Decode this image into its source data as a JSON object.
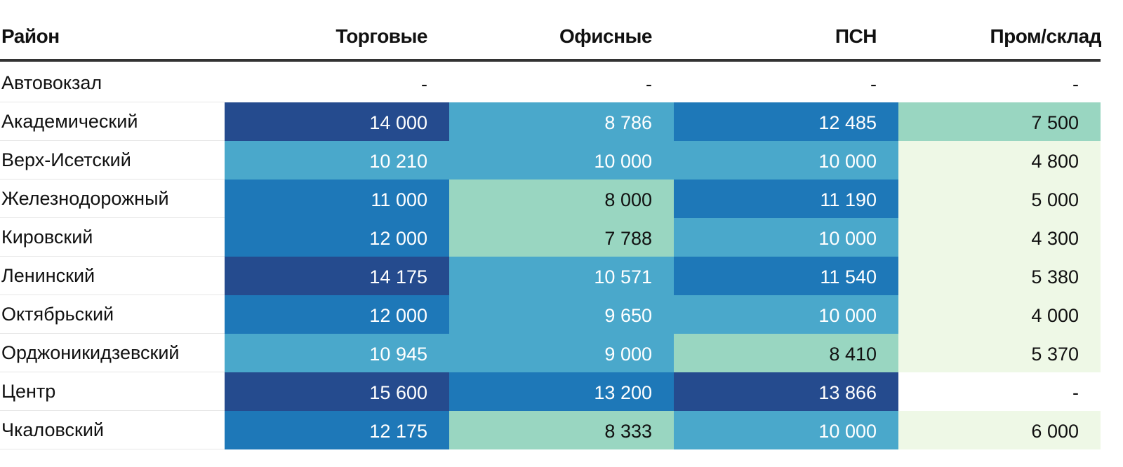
{
  "chart_data": {
    "type": "heatmap",
    "title": "",
    "columns": [
      "Район",
      "Торговые",
      "Офисные",
      "ПСН",
      "Пром/склад"
    ],
    "rows": [
      {
        "district": "Автовокзал",
        "values": [
          "-",
          "-",
          "-",
          "-"
        ],
        "levels": [
          0,
          0,
          0,
          0
        ]
      },
      {
        "district": "Академический",
        "values": [
          "14 000",
          "8 786",
          "12 485",
          "7 500"
        ],
        "levels": [
          4,
          2,
          3,
          1
        ]
      },
      {
        "district": "Верх-Исетский",
        "values": [
          "10 210",
          "10 000",
          "10 000",
          "4 800"
        ],
        "levels": [
          2,
          2,
          2,
          5
        ]
      },
      {
        "district": "Железнодорожный",
        "values": [
          "11 000",
          "8 000",
          "11 190",
          "5 000"
        ],
        "levels": [
          3,
          1,
          3,
          5
        ]
      },
      {
        "district": "Кировский",
        "values": [
          "12 000",
          "7 788",
          "10 000",
          "4 300"
        ],
        "levels": [
          3,
          1,
          2,
          5
        ]
      },
      {
        "district": "Ленинский",
        "values": [
          "14 175",
          "10 571",
          "11 540",
          "5 380"
        ],
        "levels": [
          4,
          2,
          3,
          5
        ]
      },
      {
        "district": "Октябрьский",
        "values": [
          "12 000",
          "9 650",
          "10 000",
          "4 000"
        ],
        "levels": [
          3,
          2,
          2,
          5
        ]
      },
      {
        "district": "Орджоникидзевский",
        "values": [
          "10 945",
          "9 000",
          "8 410",
          "5 370"
        ],
        "levels": [
          2,
          2,
          1,
          5
        ]
      },
      {
        "district": "Центр",
        "values": [
          "15 600",
          "13 200",
          "13 866",
          "-"
        ],
        "levels": [
          4,
          3,
          4,
          0
        ]
      },
      {
        "district": "Чкаловский",
        "values": [
          "12 175",
          "8 333",
          "10 000",
          "6 000"
        ],
        "levels": [
          3,
          1,
          2,
          5
        ]
      }
    ],
    "color_scale": [
      "#ffffff",
      "#99d6c1",
      "#4aa8cb",
      "#1e78b8",
      "#254b8e",
      "#eef8e6"
    ],
    "text_colors": [
      "#111111",
      "#111111",
      "#ffffff",
      "#ffffff",
      "#ffffff",
      "#111111"
    ]
  }
}
